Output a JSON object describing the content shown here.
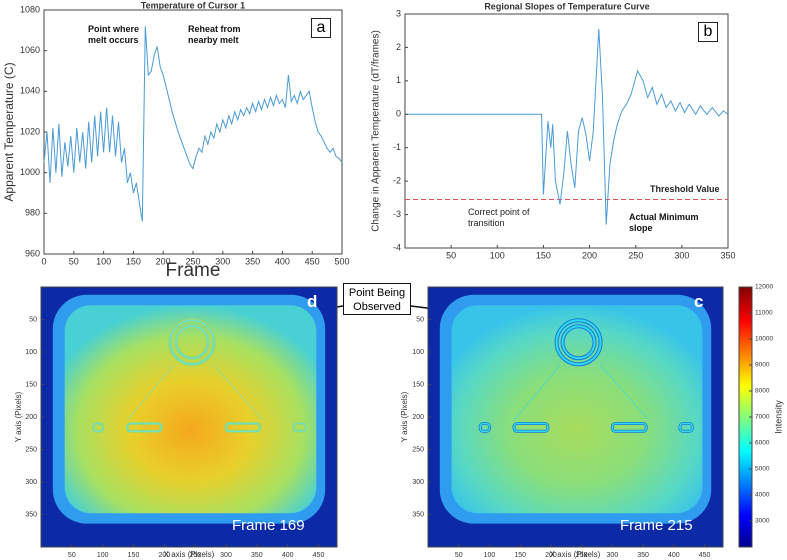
{
  "chart_data": [
    {
      "type": "line",
      "title": "Temperature of Cursor 1",
      "xlabel": "Frame",
      "ylabel": "Apparent  Temperature  (C)",
      "panel_label": "a",
      "annotations": [
        "Point where melt occurs",
        "Reheat from nearby melt"
      ],
      "x": [
        0,
        5,
        10,
        15,
        20,
        25,
        30,
        35,
        40,
        45,
        50,
        55,
        60,
        65,
        70,
        75,
        80,
        85,
        90,
        95,
        100,
        105,
        110,
        115,
        120,
        125,
        130,
        135,
        140,
        145,
        150,
        155,
        160,
        165,
        170,
        175,
        180,
        185,
        190,
        195,
        200,
        205,
        210,
        215,
        220,
        225,
        230,
        235,
        240,
        245,
        250,
        255,
        260,
        265,
        270,
        275,
        280,
        285,
        290,
        295,
        300,
        305,
        310,
        315,
        320,
        325,
        330,
        335,
        340,
        345,
        350,
        355,
        360,
        365,
        370,
        375,
        380,
        385,
        390,
        395,
        400,
        405,
        410,
        415,
        420,
        425,
        430,
        435,
        440,
        445,
        450,
        455,
        460,
        465,
        470,
        475,
        480,
        485,
        490,
        495,
        500
      ],
      "values": [
        1005,
        1020,
        995,
        1022,
        1000,
        1024,
        998,
        1015,
        1003,
        1018,
        1000,
        1022,
        1005,
        1020,
        1002,
        1025,
        1005,
        1028,
        1008,
        1030,
        1010,
        1032,
        1010,
        1028,
        1008,
        1025,
        1005,
        1012,
        995,
        1000,
        990,
        995,
        985,
        976,
        1072,
        1048,
        1050,
        1058,
        1062,
        1052,
        1048,
        1042,
        1036,
        1030,
        1025,
        1020,
        1016,
        1012,
        1008,
        1004,
        1002,
        1008,
        1012,
        1010,
        1018,
        1014,
        1020,
        1017,
        1024,
        1020,
        1026,
        1022,
        1028,
        1024,
        1030,
        1026,
        1031,
        1028,
        1032,
        1029,
        1034,
        1030,
        1035,
        1031,
        1036,
        1032,
        1037,
        1033,
        1038,
        1034,
        1036,
        1032,
        1048,
        1035,
        1038,
        1034,
        1040,
        1036,
        1038,
        1040,
        1032,
        1025,
        1020,
        1018,
        1015,
        1012,
        1010,
        1012,
        1008,
        1007,
        1005
      ],
      "color": "#4a9bd6",
      "xlim": [
        0,
        500
      ],
      "ylim": [
        960,
        1080
      ],
      "xticks": [
        0,
        50,
        100,
        150,
        200,
        250,
        300,
        350,
        400,
        450,
        500
      ],
      "yticks": [
        960,
        980,
        1000,
        1020,
        1040,
        1060,
        1080
      ]
    },
    {
      "type": "line",
      "title": "Regional Slopes of Temperature Curve",
      "ylabel": "Change in Apparent Temperature (dT/frames)",
      "panel_label": "b",
      "annotations": [
        "Threshold Value",
        "Correct point of transition",
        "Actual Minimum slope"
      ],
      "threshold": -2.55,
      "threshold_color": "#e05050",
      "x": [
        0,
        148,
        150,
        155,
        158,
        160,
        163,
        168,
        172,
        176,
        180,
        184,
        188,
        192,
        196,
        200,
        204,
        210,
        214,
        218,
        222,
        226,
        230,
        235,
        240,
        245,
        252,
        258,
        263,
        268,
        273,
        278,
        283,
        288,
        293,
        298,
        303,
        308,
        315,
        320,
        327,
        333,
        340,
        345,
        350
      ],
      "values": [
        0,
        0,
        -2.4,
        -0.2,
        -1,
        -0.3,
        -2,
        -2.7,
        -1.8,
        -0.5,
        -1.5,
        -2.2,
        -0.5,
        -0.1,
        -0.6,
        -1.4,
        -0.5,
        2.55,
        0.5,
        -3.3,
        -1.5,
        -0.8,
        -0.3,
        0.1,
        0.3,
        0.6,
        1.3,
        1,
        0.5,
        0.8,
        0.3,
        0.6,
        0.2,
        0.4,
        0.1,
        0.35,
        0.05,
        0.3,
        0,
        0.25,
        0,
        0.2,
        -0.05,
        0.1,
        0
      ],
      "color": "#4a9bd6",
      "xlim": [
        0,
        350
      ],
      "ylim": [
        -4,
        3
      ],
      "xticks": [
        50,
        100,
        150,
        200,
        250,
        300,
        350
      ],
      "yticks": [
        -4,
        -3,
        -2,
        -1,
        0,
        1,
        2,
        3
      ]
    },
    {
      "type": "heatmap",
      "xlabel": "X axis (Pixels)",
      "ylabel": "Y axis (Pixels)",
      "frame_label": "Frame 169",
      "panel_label": "d",
      "palette": "hot",
      "xlim": [
        0,
        480
      ],
      "ylim": [
        0,
        400
      ],
      "xticks": [
        50,
        100,
        150,
        200,
        250,
        300,
        350,
        400,
        450
      ],
      "yticks": [
        50,
        100,
        150,
        200,
        250,
        300,
        350
      ]
    },
    {
      "type": "heatmap",
      "xlabel": "X axis (Pixels)",
      "ylabel": "Y axis (Pixels)",
      "frame_label": "Frame 215",
      "panel_label": "c",
      "palette": "cool",
      "xlim": [
        0,
        480
      ],
      "ylim": [
        0,
        400
      ],
      "xticks": [
        50,
        100,
        150,
        200,
        250,
        300,
        350,
        400,
        450
      ],
      "yticks": [
        50,
        100,
        150,
        200,
        250,
        300,
        350
      ],
      "colorbar": {
        "label": "Intensity",
        "lim": [
          2000,
          12000
        ],
        "ticks": [
          3000,
          4000,
          5000,
          6000,
          7000,
          8000,
          9000,
          10000,
          11000,
          12000
        ]
      }
    }
  ],
  "callout": "Point Being Observed"
}
